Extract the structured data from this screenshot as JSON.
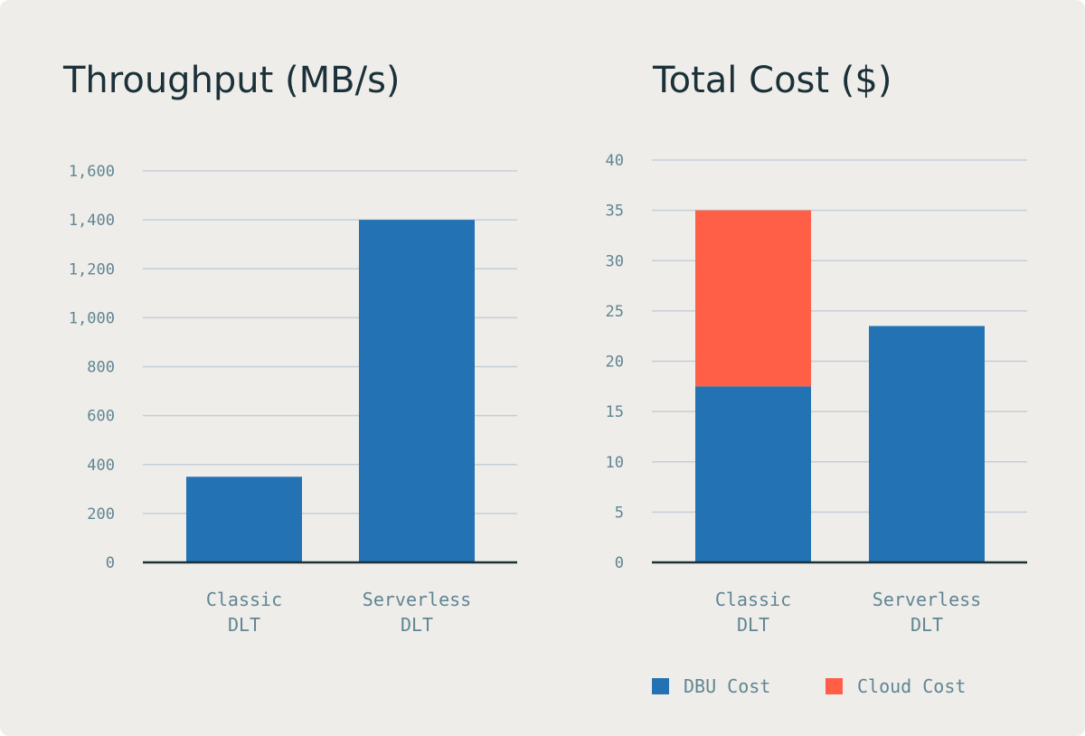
{
  "chart_data": [
    {
      "type": "bar",
      "title": "Throughput (MB/s)",
      "categories": [
        [
          "Classic",
          "DLT"
        ],
        [
          "Serverless",
          "DLT"
        ]
      ],
      "values": [
        350,
        1400
      ],
      "yticks": [
        "0",
        "200",
        "400",
        "600",
        "800",
        "1,000",
        "1,200",
        "1,400",
        "1,600"
      ],
      "ylim": [
        0,
        1600
      ],
      "xlabel": "",
      "ylabel": "",
      "grid": true,
      "color": "#2272b4"
    },
    {
      "type": "bar",
      "stacked": true,
      "title": "Total Cost ($)",
      "categories": [
        [
          "Classic",
          "DLT"
        ],
        [
          "Serverless",
          "DLT"
        ]
      ],
      "series": [
        {
          "name": "DBU Cost",
          "values": [
            17.5,
            23.5
          ],
          "color": "#2272b4"
        },
        {
          "name": "Cloud Cost",
          "values": [
            17.5,
            0
          ],
          "color": "#ff5f46"
        }
      ],
      "yticks": [
        "0",
        "5",
        "10",
        "15",
        "20",
        "25",
        "30",
        "35",
        "40"
      ],
      "ylim": [
        0,
        40
      ],
      "xlabel": "",
      "ylabel": "",
      "grid": true,
      "legend": "bottom"
    }
  ]
}
